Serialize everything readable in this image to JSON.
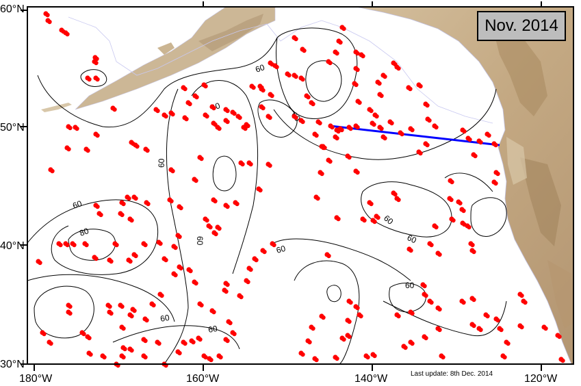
{
  "map": {
    "date_label": "Nov. 2014",
    "update_note": "Last update: 8th Dec. 2014",
    "lat_ticks": [
      "60°N",
      "50°N",
      "40°N",
      "30°N"
    ],
    "lon_ticks": [
      "180°W",
      "160°W",
      "140°W",
      "120°W"
    ],
    "contour_labels": [
      "60",
      "60",
      "60",
      "60",
      "60",
      "60",
      "60",
      "60",
      "60",
      "60",
      "80"
    ],
    "colors": {
      "ocean": "#ffffff",
      "land": "#c8b293",
      "land_dark": "#a88c68",
      "float_marker": "#ff0000",
      "section_line": "#0000ff",
      "contour": "#000000",
      "date_box": "#bdbdbd"
    },
    "marker_type": "red-dot-float",
    "section_line_name": "blue-section-line"
  }
}
